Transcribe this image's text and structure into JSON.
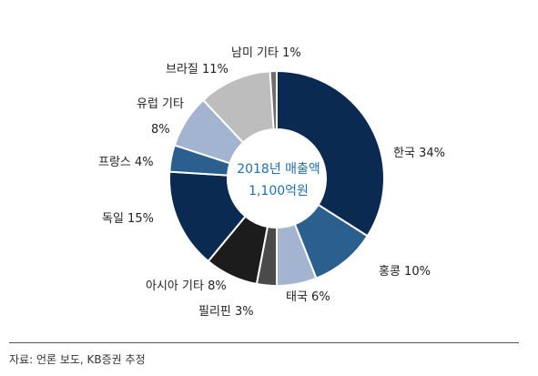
{
  "chart_data": {
    "type": "pie",
    "donut": true,
    "center_label": [
      "2018년 매출액",
      "1,100억원"
    ],
    "categories": [
      "한국",
      "홍콩",
      "태국",
      "필리핀",
      "아시아 기타",
      "독일",
      "프랑스",
      "유럽 기타",
      "브라질",
      "남미 기타"
    ],
    "values": [
      34,
      10,
      6,
      3,
      8,
      15,
      4,
      8,
      11,
      1
    ],
    "labels": [
      "한국 34%",
      "홍콩 10%",
      "태국 6%",
      "필리핀 3%",
      "아시아 기타 8%",
      "독일 15%",
      "프랑스 4%",
      "유럽 기타 8%",
      "브라질 11%",
      "남미 기타 1%"
    ],
    "colors": [
      "#0b2a52",
      "#2b5f8e",
      "#a3b4d1",
      "#4a4a4a",
      "#1c1c1c",
      "#0b2a52",
      "#2b5f8e",
      "#a3b4d1",
      "#bdbdbd",
      "#6e6e6e"
    ]
  },
  "footer": {
    "source": "자료: 언론 보도, KB증권 추정"
  }
}
